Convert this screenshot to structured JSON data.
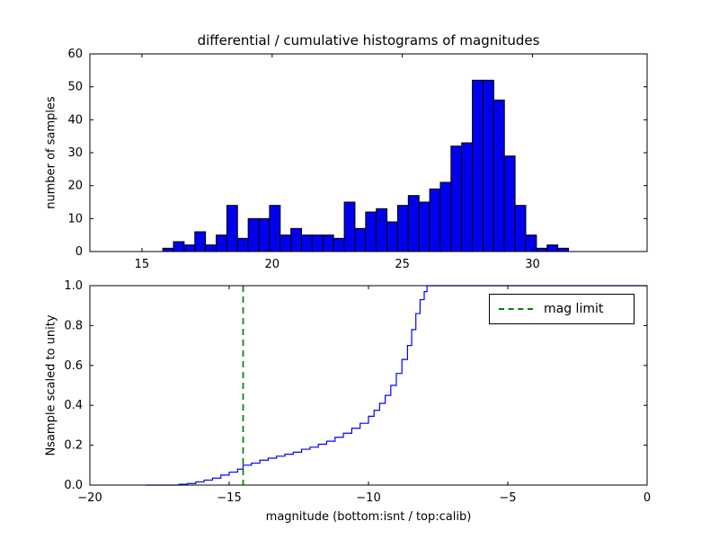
{
  "figure": {
    "title": "differential / cumulative histograms of magnitudes",
    "xlabel": "magnitude (bottom:isnt / top:calib)",
    "top_ylabel": "number of samples",
    "bottom_ylabel": "Nsample scaled to unity",
    "legend_label": "mag limit"
  },
  "colors": {
    "bar_fill": "#0000ee",
    "bar_edge": "#000000",
    "line": "#0000ff",
    "mag_limit": "#008000",
    "axis": "#000000"
  },
  "chart_data": [
    {
      "type": "bar",
      "title": "differential / cumulative histograms of magnitudes",
      "ylabel": "number of samples",
      "xlim": [
        13,
        34.4
      ],
      "ylim": [
        0,
        60
      ],
      "xticks": [
        15,
        20,
        25,
        30
      ],
      "xtick_labels": [
        "15",
        "20",
        "25",
        "30"
      ],
      "yticks": [
        0,
        10,
        20,
        30,
        40,
        50,
        60
      ],
      "ytick_labels": [
        "0",
        "10",
        "20",
        "30",
        "40",
        "50",
        "60"
      ],
      "bin_start": 15.8,
      "bin_width": 0.41,
      "values": [
        1,
        3,
        2,
        6,
        2,
        5,
        14,
        4,
        10,
        10,
        14,
        5,
        7,
        5,
        5,
        5,
        4,
        15,
        7,
        12,
        13,
        9,
        14,
        17,
        15,
        19,
        21,
        32,
        33,
        52,
        52,
        46,
        29,
        14,
        5,
        1,
        2,
        1
      ],
      "grid": false
    },
    {
      "type": "line",
      "ylabel": "Nsample scaled to unity",
      "xlabel": "magnitude (bottom:isnt / top:calib)",
      "xlim": [
        -20,
        0
      ],
      "ylim": [
        0,
        1
      ],
      "xticks": [
        -20,
        -15,
        -10,
        -5,
        0
      ],
      "xtick_labels": [
        "−20",
        "−15",
        "−10",
        "−5",
        "0"
      ],
      "yticks": [
        0,
        0.2,
        0.4,
        0.6,
        0.8,
        1.0
      ],
      "ytick_labels": [
        "0.0",
        "0.2",
        "0.4",
        "0.6",
        "0.8",
        "1.0"
      ],
      "steps": [
        [
          -18,
          0
        ],
        [
          -16.8,
          0.004
        ],
        [
          -16.5,
          0.008
        ],
        [
          -16.2,
          0.016
        ],
        [
          -15.9,
          0.025
        ],
        [
          -15.6,
          0.035
        ],
        [
          -15.3,
          0.05
        ],
        [
          -15.0,
          0.065
        ],
        [
          -14.7,
          0.08
        ],
        [
          -14.5,
          0.1
        ],
        [
          -14.2,
          0.11
        ],
        [
          -13.9,
          0.125
        ],
        [
          -13.6,
          0.135
        ],
        [
          -13.3,
          0.145
        ],
        [
          -13.0,
          0.155
        ],
        [
          -12.7,
          0.165
        ],
        [
          -12.4,
          0.18
        ],
        [
          -12.1,
          0.19
        ],
        [
          -11.8,
          0.205
        ],
        [
          -11.5,
          0.22
        ],
        [
          -11.2,
          0.24
        ],
        [
          -10.9,
          0.26
        ],
        [
          -10.6,
          0.285
        ],
        [
          -10.3,
          0.31
        ],
        [
          -10.0,
          0.345
        ],
        [
          -9.8,
          0.375
        ],
        [
          -9.6,
          0.41
        ],
        [
          -9.4,
          0.45
        ],
        [
          -9.2,
          0.5
        ],
        [
          -9.0,
          0.56
        ],
        [
          -8.8,
          0.63
        ],
        [
          -8.6,
          0.7
        ],
        [
          -8.45,
          0.78
        ],
        [
          -8.3,
          0.86
        ],
        [
          -8.15,
          0.93
        ],
        [
          -8.0,
          0.97
        ],
        [
          -7.9,
          1.0
        ],
        [
          0,
          1.0
        ]
      ],
      "mag_limit_x": -14.5,
      "legend": "mag limit",
      "legend_position": "upper right",
      "grid": false
    }
  ]
}
